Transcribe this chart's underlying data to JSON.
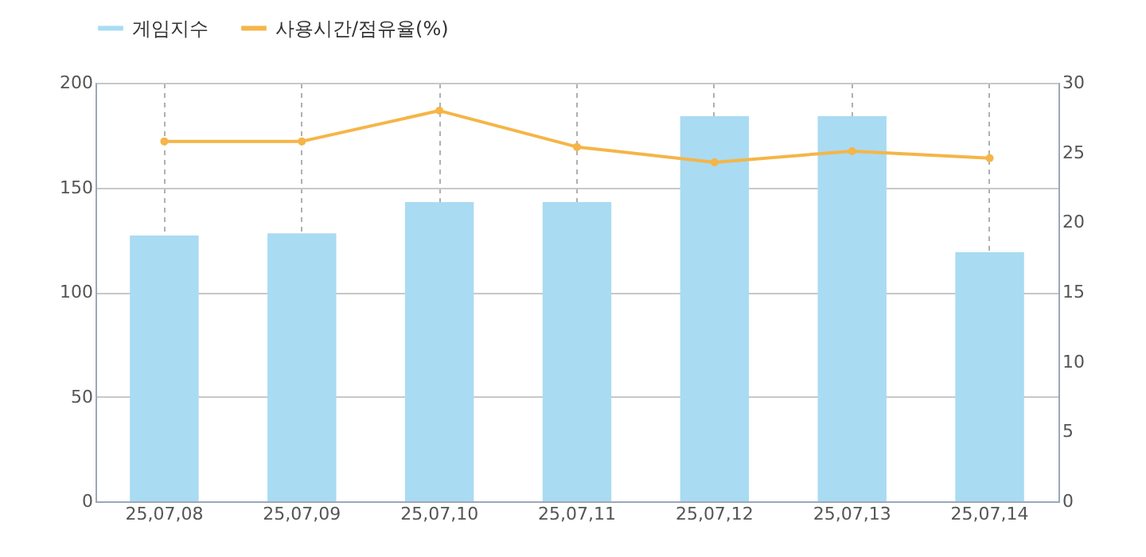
{
  "chart_data": {
    "type": "bar",
    "categories": [
      "25,07,08",
      "25,07,09",
      "25,07,10",
      "25,07,11",
      "25,07,12",
      "25,07,13",
      "25,07,14"
    ],
    "series": [
      {
        "name": "게임지수",
        "color": "#a9dbf3",
        "values": [
          127,
          128,
          143,
          143,
          184,
          184,
          119
        ]
      },
      {
        "name": "사용시간/점유율(%)",
        "type": "line",
        "axis": "y2",
        "color": "#f5b547",
        "values": [
          25.8,
          25.8,
          28.0,
          25.4,
          24.3,
          25.1,
          24.6
        ]
      }
    ],
    "ylim": [
      0,
      200
    ],
    "yticks": [
      0,
      50,
      100,
      150,
      200
    ],
    "y2lim": [
      0,
      30
    ],
    "y2ticks": [
      0,
      5,
      10,
      15,
      20,
      25,
      30
    ],
    "grid": true,
    "legend": "top left",
    "marker": "circle",
    "line_style": "solid"
  }
}
